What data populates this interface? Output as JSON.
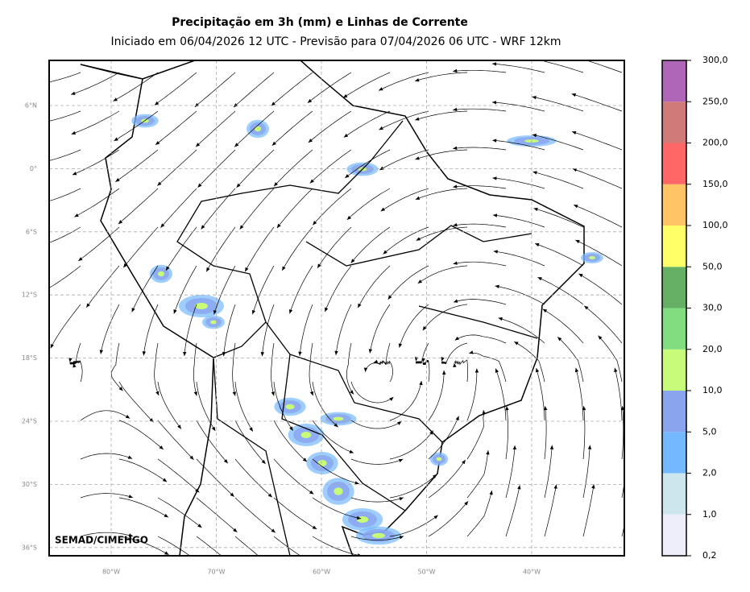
{
  "title": "Precipitação em 3h (mm) e Linhas de Corrente",
  "subtitle": "Iniciado em 06/04/2026 12 UTC - Previsão para 07/04/2026 06 UTC - WRF 12km",
  "credit": "SEMAD/CIMEHGO",
  "map": {
    "lat_labels": [
      "6°N",
      "0°",
      "6°S",
      "12°S",
      "18°S",
      "24°S",
      "30°S",
      "36°S"
    ],
    "lon_labels": [
      "80°W",
      "70°W",
      "60°W",
      "50°W",
      "40°W"
    ],
    "grid": true
  },
  "legend": {
    "labels": [
      "0,2",
      "1,0",
      "2,0",
      "5,0",
      "10,0",
      "20,0",
      "30,0",
      "50,0",
      "100,0",
      "150,0",
      "200,0",
      "250,0",
      "300,0"
    ],
    "colors": [
      "#eeeefa",
      "#cde6ee",
      "#74b9ff",
      "#8aa4ee",
      "#c8fb7a",
      "#80dd80",
      "#66b066",
      "#ffff66",
      "#ffc466",
      "#ff6666",
      "#d07a7a",
      "#b066b8"
    ]
  }
}
